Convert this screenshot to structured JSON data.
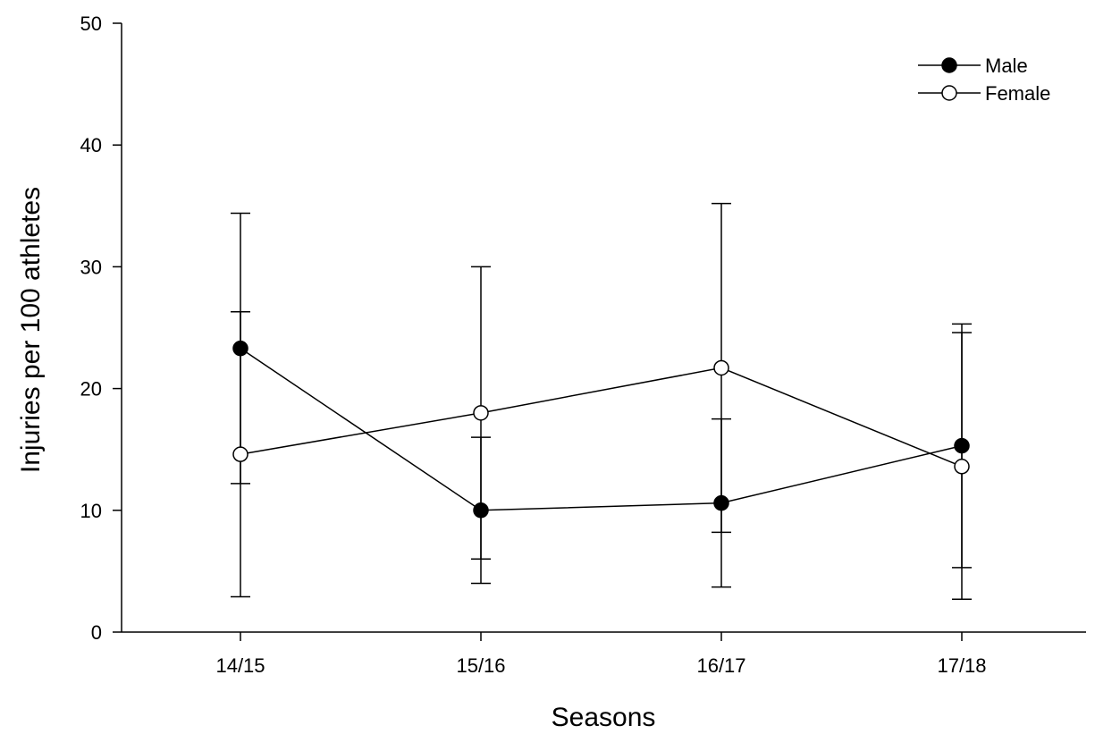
{
  "chart_data": {
    "type": "line",
    "title": "",
    "xlabel": "Seasons",
    "ylabel": "Injuries per 100 athletes",
    "categories": [
      "14/15",
      "15/16",
      "16/17",
      "17/18"
    ],
    "ylim": [
      0,
      50
    ],
    "yticks": [
      0,
      10,
      20,
      30,
      40,
      50
    ],
    "grid": false,
    "legend_position": "top-right",
    "series": [
      {
        "name": "Male",
        "marker": "filled-circle",
        "color": "#000000",
        "values": [
          23.3,
          10.0,
          10.6,
          15.3
        ],
        "error_low": [
          12.2,
          4.0,
          3.7,
          5.3
        ],
        "error_high": [
          34.4,
          16.0,
          17.5,
          25.3
        ]
      },
      {
        "name": "Female",
        "marker": "open-circle",
        "color": "#000000",
        "values": [
          14.6,
          18.0,
          21.7,
          13.6
        ],
        "error_low": [
          2.9,
          6.0,
          8.2,
          2.7
        ],
        "error_high": [
          26.3,
          30.0,
          35.2,
          24.6
        ]
      }
    ]
  }
}
